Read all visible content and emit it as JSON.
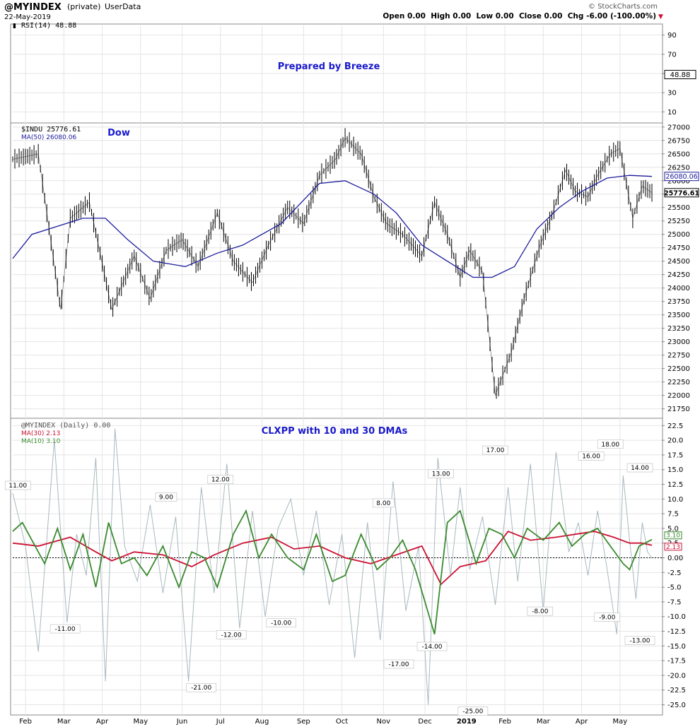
{
  "header": {
    "symbol": "@MYINDEX",
    "privacy": "(private)",
    "source": "UserData",
    "date": "22-May-2019",
    "watermark": "© StockCharts.com",
    "ohlc": "Open 0.00  High 0.00  Low 0.00  Close 0.00  Chg -6.00 (-100.00%)",
    "chg_marker": "▼"
  },
  "colors": {
    "price": "#000000",
    "ma50": "#1a1a9c",
    "annotation": "#1a1acc",
    "raw": "#a9b8bf",
    "ma30": "#cc1133",
    "ma10": "#3a8a2e",
    "grid": "#e4e4e4"
  },
  "chart_data": [
    {
      "type": "line",
      "panel": "rsi",
      "legend": "RSI(14) 48.88",
      "annotation": "Prepared by Breeze",
      "ylim": [
        0,
        100
      ],
      "y_ticks": [
        10,
        30,
        50,
        70,
        90
      ],
      "last_value": 48.88,
      "last_label": "48.88"
    },
    {
      "type": "line",
      "panel": "price",
      "annotation": "Dow",
      "ylim": [
        21600,
        27050
      ],
      "y_ticks": [
        21750,
        22000,
        22250,
        22500,
        22750,
        23000,
        23250,
        23500,
        23750,
        24000,
        24250,
        24500,
        24750,
        25000,
        25250,
        25500,
        25750,
        26000,
        26250,
        26500,
        26750,
        27000
      ],
      "series": [
        {
          "name": "$INDU",
          "legend": "$INDU 25776.61",
          "last_label": "25776.61",
          "x": [
            0,
            0.04,
            0.075,
            0.09,
            0.12,
            0.155,
            0.19,
            0.215,
            0.24,
            0.265,
            0.29,
            0.32,
            0.345,
            0.375,
            0.4,
            0.43,
            0.455,
            0.48,
            0.505,
            0.52,
            0.545,
            0.565,
            0.585,
            0.61,
            0.64,
            0.66,
            0.68,
            0.7,
            0.715,
            0.735,
            0.755,
            0.78,
            0.8,
            0.825,
            0.845,
            0.865,
            0.88,
            0.9,
            0.915,
            0.935,
            0.95,
            0.97,
            0.985,
            1
          ],
          "values": [
            26400,
            26500,
            23600,
            25300,
            25600,
            23600,
            24600,
            23800,
            24700,
            24900,
            24400,
            25400,
            24500,
            24100,
            24800,
            25500,
            25200,
            26100,
            26400,
            26800,
            26500,
            25700,
            25200,
            25000,
            24600,
            25600,
            25000,
            24200,
            24700,
            24300,
            22000,
            22800,
            23800,
            24800,
            25400,
            26200,
            25800,
            25700,
            26100,
            26500,
            26600,
            25300,
            25900,
            25776
          ]
        },
        {
          "name": "MA(50)",
          "legend": "MA(50) 26080.06",
          "last_label": "26080.06",
          "x": [
            0,
            0.03,
            0.07,
            0.11,
            0.145,
            0.18,
            0.22,
            0.27,
            0.32,
            0.36,
            0.42,
            0.48,
            0.52,
            0.565,
            0.6,
            0.64,
            0.68,
            0.72,
            0.75,
            0.785,
            0.82,
            0.855,
            0.89,
            0.93,
            0.965,
            1
          ],
          "values": [
            24550,
            25000,
            25150,
            25300,
            25300,
            24900,
            24500,
            24400,
            24650,
            24800,
            25200,
            25950,
            26000,
            25750,
            25400,
            24800,
            24500,
            24200,
            24200,
            24400,
            25100,
            25500,
            25800,
            26050,
            26100,
            26080
          ]
        }
      ]
    },
    {
      "type": "line",
      "panel": "oscillator",
      "annotation": "CLXPP with 10 and 30 DMAs",
      "ylim": [
        -26.5,
        23.5
      ],
      "y_ticks": [
        -25,
        -22.5,
        -20,
        -17.5,
        -15,
        -12.5,
        -10,
        -7.5,
        -5,
        -2.5,
        0,
        2.5,
        5,
        7.5,
        10,
        12.5,
        15,
        17.5,
        20,
        22.5
      ],
      "tick_labels": [
        "-25.0",
        "-22.5",
        "-20.0",
        "-17.5",
        "-15.0",
        "-12.5",
        "-10.0",
        "-7.5",
        "-5.0",
        "-2.5",
        "0.00",
        "2.5",
        "5.0",
        "7.5",
        "10.0",
        "12.5",
        "15.0",
        "17.5",
        "20.0",
        "22.5"
      ],
      "series": [
        {
          "name": "@MYINDEX (Daily)",
          "legend": "@MYINDEX (Daily) 0.00",
          "x": [
            0,
            0.02,
            0.04,
            0.065,
            0.085,
            0.1,
            0.115,
            0.13,
            0.145,
            0.16,
            0.175,
            0.195,
            0.215,
            0.235,
            0.255,
            0.275,
            0.295,
            0.315,
            0.335,
            0.355,
            0.375,
            0.395,
            0.415,
            0.435,
            0.455,
            0.475,
            0.495,
            0.515,
            0.535,
            0.555,
            0.575,
            0.595,
            0.615,
            0.635,
            0.65,
            0.665,
            0.685,
            0.7,
            0.715,
            0.735,
            0.755,
            0.775,
            0.79,
            0.81,
            0.83,
            0.85,
            0.87,
            0.885,
            0.9,
            0.915,
            0.93,
            0.945,
            0.955,
            0.965,
            0.975,
            0.985,
            0.993,
            1
          ],
          "values": [
            11,
            2,
            -16,
            20,
            -11,
            4,
            -3,
            17,
            -21,
            22,
            2,
            -4,
            9,
            -6,
            7,
            -21,
            12,
            -6,
            16,
            -12,
            8,
            -10,
            5,
            10,
            -3,
            8,
            -8,
            4,
            -17,
            6,
            -14,
            13,
            -9,
            2,
            -25,
            17,
            -3,
            12,
            -2,
            7,
            -8,
            12,
            -4,
            16,
            -9,
            18,
            1,
            6,
            -3,
            8,
            -2,
            -13,
            14,
            3,
            -7,
            6,
            1,
            0
          ]
        },
        {
          "name": "MA(30)",
          "legend": "MA(30) 2.13",
          "last_label": "2.13",
          "x": [
            0,
            0.04,
            0.09,
            0.13,
            0.155,
            0.19,
            0.235,
            0.28,
            0.315,
            0.36,
            0.405,
            0.44,
            0.48,
            0.52,
            0.56,
            0.6,
            0.64,
            0.67,
            0.7,
            0.74,
            0.775,
            0.81,
            0.85,
            0.88,
            0.91,
            0.94,
            0.965,
            0.985,
            1
          ],
          "values": [
            2.5,
            2,
            3.5,
            1,
            -0.5,
            1,
            0.5,
            -1.5,
            0.5,
            2.5,
            3.5,
            1.5,
            2,
            0,
            -1,
            0.5,
            2,
            -4.5,
            -1.5,
            -0.5,
            4.5,
            3,
            3.5,
            4,
            4.5,
            3.5,
            2.5,
            2.5,
            2.13
          ]
        },
        {
          "name": "MA(10)",
          "legend": "MA(10) 3.10",
          "last_label": "3.10",
          "x": [
            0,
            0.015,
            0.03,
            0.05,
            0.07,
            0.09,
            0.11,
            0.13,
            0.15,
            0.17,
            0.19,
            0.21,
            0.235,
            0.26,
            0.28,
            0.3,
            0.32,
            0.345,
            0.365,
            0.385,
            0.405,
            0.43,
            0.455,
            0.475,
            0.5,
            0.52,
            0.545,
            0.57,
            0.59,
            0.61,
            0.63,
            0.66,
            0.68,
            0.7,
            0.725,
            0.745,
            0.765,
            0.785,
            0.805,
            0.83,
            0.855,
            0.875,
            0.895,
            0.915,
            0.935,
            0.955,
            0.965,
            0.98,
            1
          ],
          "values": [
            4.5,
            6,
            3,
            -1,
            5,
            -2,
            4,
            -5,
            6,
            -1,
            0,
            -3,
            2,
            -5,
            1,
            0,
            -5,
            4,
            8,
            0,
            4,
            0,
            -2,
            4,
            -4,
            -3,
            4,
            -2,
            0,
            3,
            -2,
            -13,
            6,
            8,
            -1,
            5,
            4,
            0,
            5,
            3,
            6,
            2,
            4,
            5,
            2,
            -1,
            -2,
            2,
            3.1
          ]
        }
      ],
      "annotations": [
        {
          "label": "11.00",
          "x": 0.008,
          "y": 11
        },
        {
          "label": "-11.00",
          "x": 0.082,
          "y": -11
        },
        {
          "label": "9.00",
          "x": 0.24,
          "y": 9
        },
        {
          "label": "-21.00",
          "x": 0.295,
          "y": -21
        },
        {
          "label": "12.00",
          "x": 0.325,
          "y": 12
        },
        {
          "label": "-12.00",
          "x": 0.342,
          "y": -12
        },
        {
          "label": "-10.00",
          "x": 0.42,
          "y": -10
        },
        {
          "label": "8.00",
          "x": 0.58,
          "y": 8
        },
        {
          "label": "-17.00",
          "x": 0.604,
          "y": -17
        },
        {
          "label": "-14.00",
          "x": 0.656,
          "y": -14
        },
        {
          "label": "13.00",
          "x": 0.67,
          "y": 13
        },
        {
          "label": "-25.00",
          "x": 0.72,
          "y": -25
        },
        {
          "label": "17.00",
          "x": 0.755,
          "y": 17
        },
        {
          "label": "-8.00",
          "x": 0.825,
          "y": -8
        },
        {
          "label": "16.00",
          "x": 0.905,
          "y": 16
        },
        {
          "label": "18.00",
          "x": 0.935,
          "y": 18
        },
        {
          "label": "-9.00",
          "x": 0.93,
          "y": -9
        },
        {
          "label": "-13.00",
          "x": 0.99,
          "y": -13
        },
        {
          "label": "14.00",
          "x": 1.005,
          "y": 14
        }
      ]
    }
  ],
  "x_axis": {
    "labels": [
      "Feb",
      "Mar",
      "Apr",
      "May",
      "Jun",
      "Jul",
      "Aug",
      "Sep",
      "Oct",
      "Nov",
      "Dec",
      "2019",
      "Feb",
      "Mar",
      "Apr",
      "May"
    ],
    "positions": [
      0.02,
      0.08,
      0.14,
      0.2,
      0.265,
      0.325,
      0.39,
      0.455,
      0.515,
      0.58,
      0.645,
      0.71,
      0.77,
      0.83,
      0.89,
      0.95
    ],
    "bold_index": 11
  }
}
